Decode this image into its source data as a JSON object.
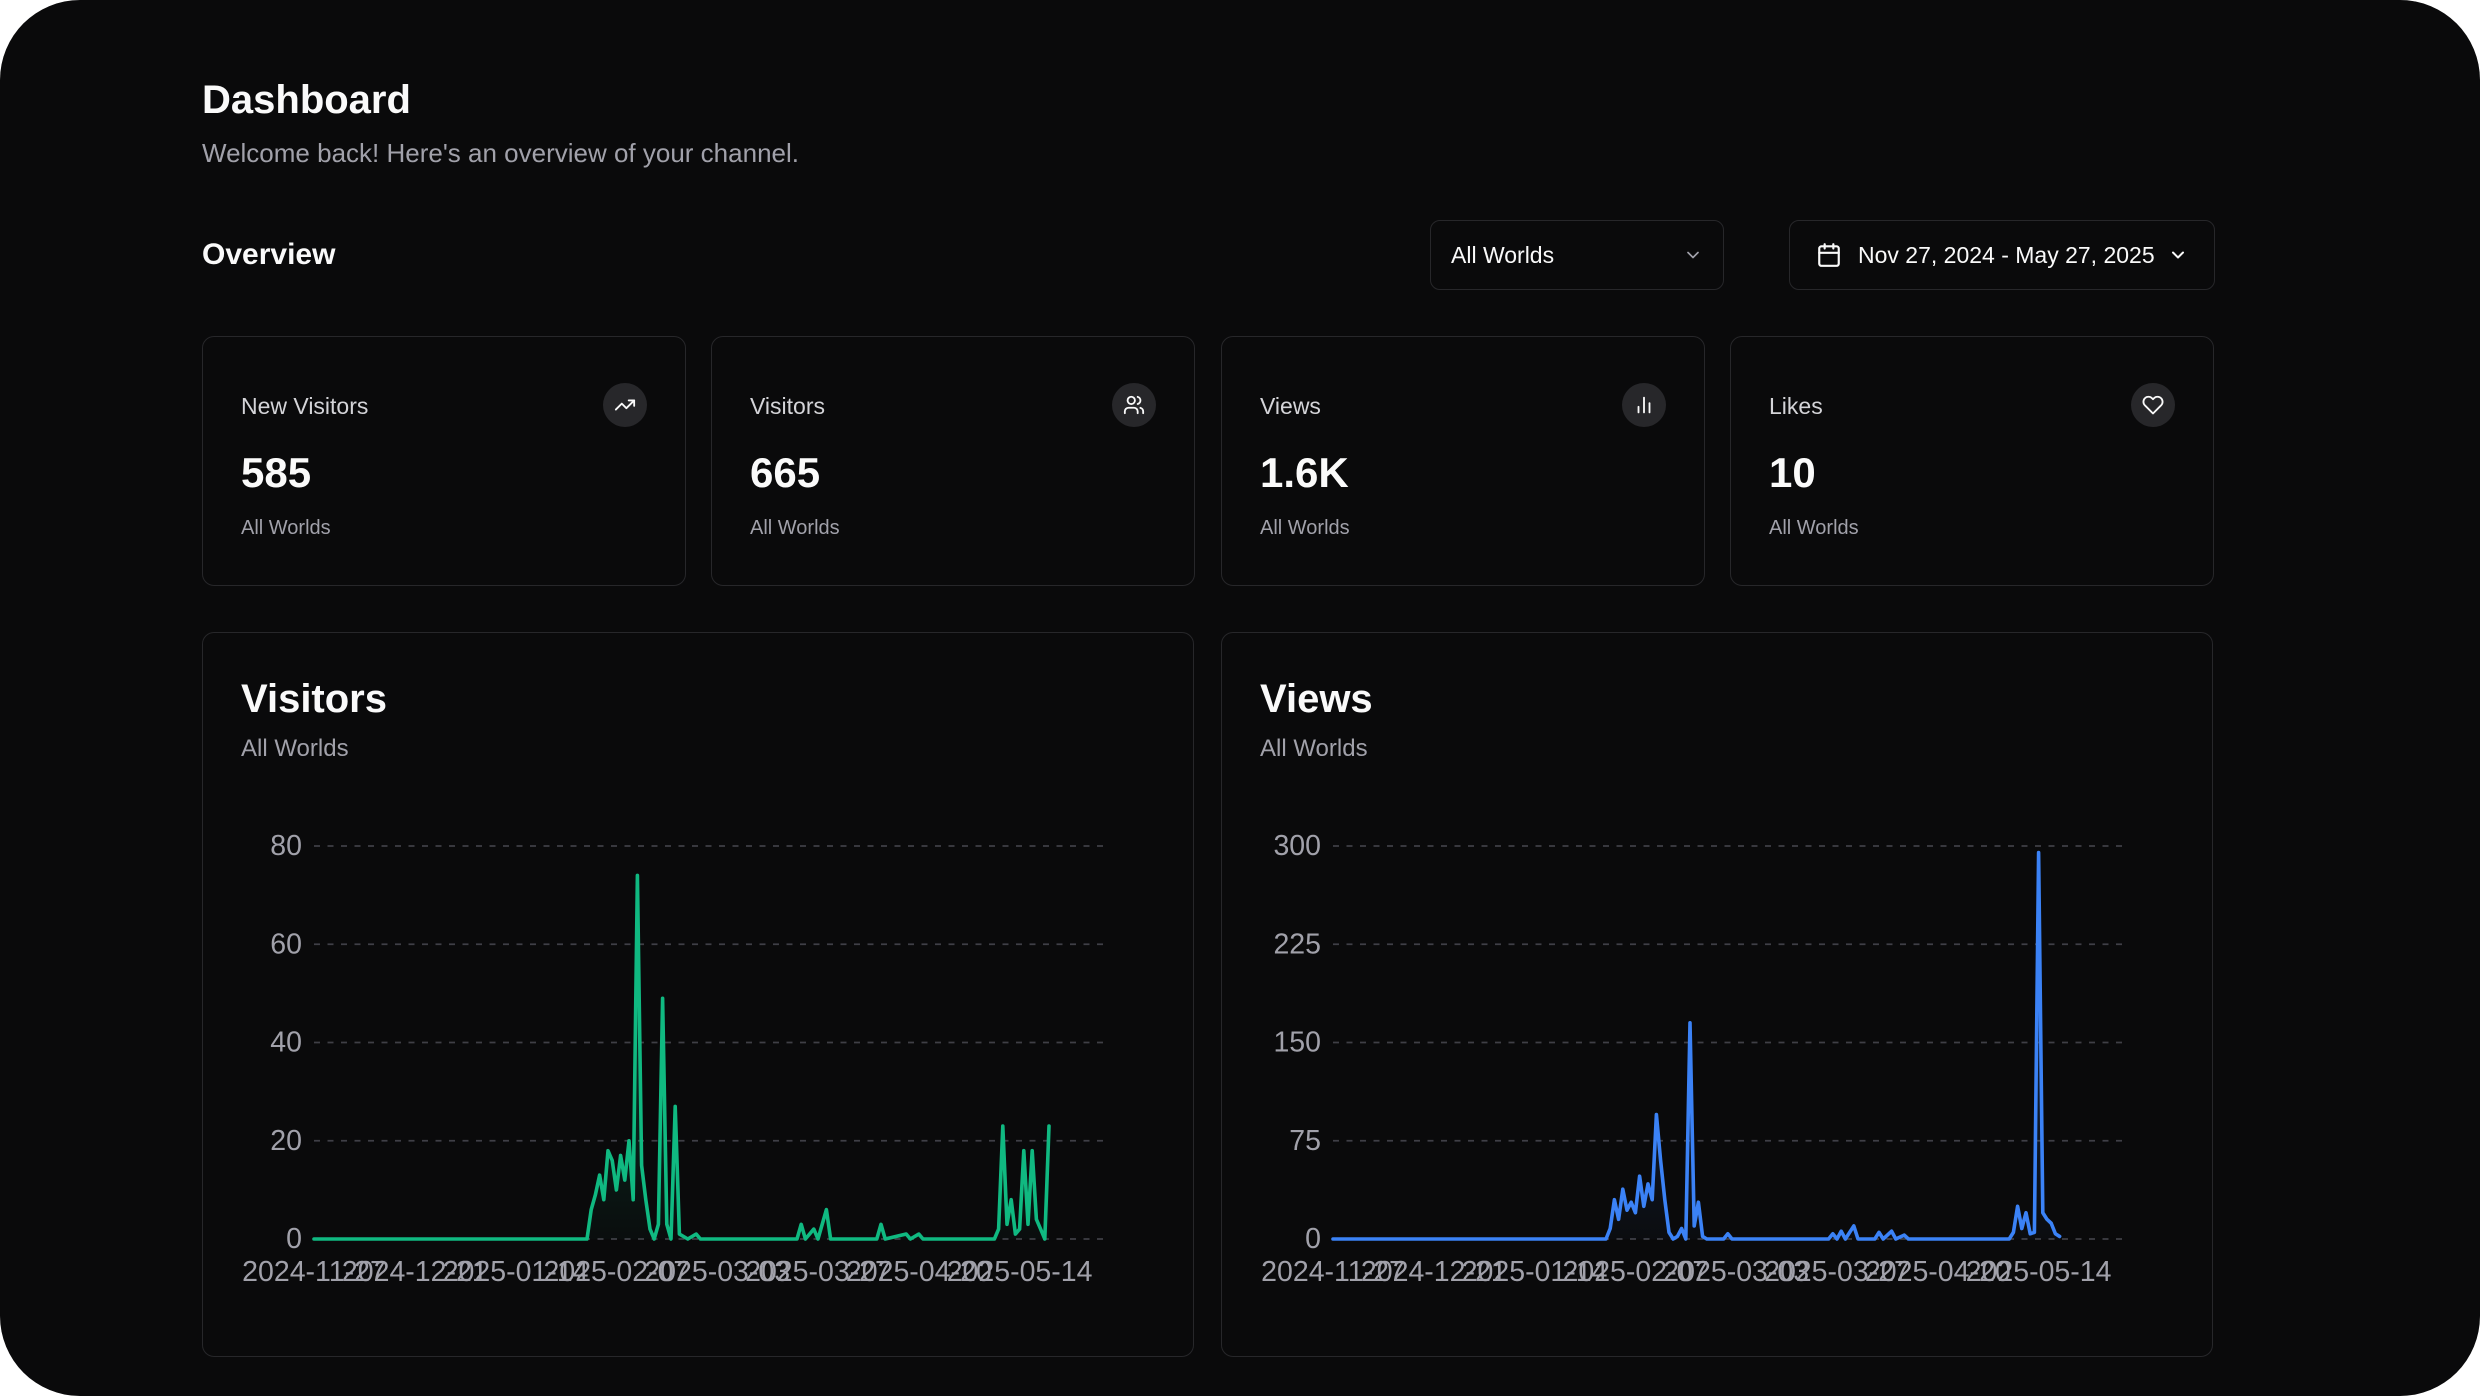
{
  "header": {
    "title": "Dashboard",
    "subtitle": "Welcome back! Here's an overview of your channel."
  },
  "overview": {
    "title": "Overview",
    "world_filter": "All Worlds",
    "date_range": "Nov 27, 2024 - May 27, 2025"
  },
  "stats": [
    {
      "label": "New Visitors",
      "value": "585",
      "scope": "All Worlds",
      "icon": "trending-up-icon"
    },
    {
      "label": "Visitors",
      "value": "665",
      "scope": "All Worlds",
      "icon": "users-icon"
    },
    {
      "label": "Views",
      "value": "1.6K",
      "scope": "All Worlds",
      "icon": "bar-chart-icon"
    },
    {
      "label": "Likes",
      "value": "10",
      "scope": "All Worlds",
      "icon": "heart-icon"
    }
  ],
  "colors": {
    "visitors_line": "#10b981",
    "views_line": "#3b82f6"
  },
  "chart_data": [
    {
      "type": "area",
      "title": "Visitors",
      "subtitle": "All Worlds",
      "x_tick_labels": [
        "2024-11-27",
        "2024-12-21",
        "2025-01-14",
        "2025-02-07",
        "2025-03-03",
        "2025-03-27",
        "2025-04-20",
        "2025-05-14"
      ],
      "y_ticks": [
        0,
        20,
        40,
        60,
        80
      ],
      "ylim": [
        0,
        80
      ],
      "x_start": "2024-11-27",
      "x_end": "2025-05-27",
      "grid": true,
      "series": [
        {
          "name": "Visitors",
          "points": [
            [
              "2024-11-27",
              0
            ],
            [
              "2025-01-31",
              0
            ],
            [
              "2025-02-01",
              6
            ],
            [
              "2025-02-02",
              9
            ],
            [
              "2025-02-03",
              13
            ],
            [
              "2025-02-04",
              8
            ],
            [
              "2025-02-05",
              18
            ],
            [
              "2025-02-06",
              16
            ],
            [
              "2025-02-07",
              10
            ],
            [
              "2025-02-08",
              17
            ],
            [
              "2025-02-09",
              12
            ],
            [
              "2025-02-10",
              20
            ],
            [
              "2025-02-11",
              8
            ],
            [
              "2025-02-12",
              74
            ],
            [
              "2025-02-13",
              15
            ],
            [
              "2025-02-14",
              8
            ],
            [
              "2025-02-15",
              2
            ],
            [
              "2025-02-16",
              0
            ],
            [
              "2025-02-17",
              3
            ],
            [
              "2025-02-18",
              49
            ],
            [
              "2025-02-19",
              3
            ],
            [
              "2025-02-20",
              0
            ],
            [
              "2025-02-21",
              27
            ],
            [
              "2025-02-22",
              1
            ],
            [
              "2025-02-24",
              0
            ],
            [
              "2025-02-26",
              1
            ],
            [
              "2025-02-27",
              0
            ],
            [
              "2025-03-22",
              0
            ],
            [
              "2025-03-23",
              3
            ],
            [
              "2025-03-24",
              0
            ],
            [
              "2025-03-26",
              2
            ],
            [
              "2025-03-27",
              0
            ],
            [
              "2025-03-29",
              6
            ],
            [
              "2025-03-30",
              0
            ],
            [
              "2025-04-10",
              0
            ],
            [
              "2025-04-11",
              3
            ],
            [
              "2025-04-12",
              0
            ],
            [
              "2025-04-17",
              1
            ],
            [
              "2025-04-18",
              0
            ],
            [
              "2025-04-20",
              1
            ],
            [
              "2025-04-21",
              0
            ],
            [
              "2025-05-08",
              0
            ],
            [
              "2025-05-09",
              2
            ],
            [
              "2025-05-10",
              23
            ],
            [
              "2025-05-11",
              3
            ],
            [
              "2025-05-12",
              8
            ],
            [
              "2025-05-13",
              1
            ],
            [
              "2025-05-14",
              2
            ],
            [
              "2025-05-15",
              18
            ],
            [
              "2025-05-16",
              3
            ],
            [
              "2025-05-17",
              18
            ],
            [
              "2025-05-18",
              4
            ],
            [
              "2025-05-19",
              2
            ],
            [
              "2025-05-20",
              0
            ],
            [
              "2025-05-21",
              23
            ]
          ]
        }
      ]
    },
    {
      "type": "line",
      "title": "Views",
      "subtitle": "All Worlds",
      "x_tick_labels": [
        "2024-11-27",
        "2024-12-21",
        "2025-01-14",
        "2025-02-07",
        "2025-03-03",
        "2025-03-27",
        "2025-04-20",
        "2025-05-14"
      ],
      "y_ticks": [
        0,
        75,
        150,
        225,
        300
      ],
      "ylim": [
        0,
        300
      ],
      "x_start": "2024-11-27",
      "x_end": "2025-05-27",
      "grid": true,
      "series": [
        {
          "name": "Views",
          "points": [
            [
              "2024-11-27",
              0
            ],
            [
              "2025-01-31",
              0
            ],
            [
              "2025-02-01",
              8
            ],
            [
              "2025-02-02",
              30
            ],
            [
              "2025-02-03",
              15
            ],
            [
              "2025-02-04",
              38
            ],
            [
              "2025-02-05",
              22
            ],
            [
              "2025-02-06",
              28
            ],
            [
              "2025-02-07",
              20
            ],
            [
              "2025-02-08",
              48
            ],
            [
              "2025-02-09",
              25
            ],
            [
              "2025-02-10",
              42
            ],
            [
              "2025-02-11",
              30
            ],
            [
              "2025-02-12",
              95
            ],
            [
              "2025-02-13",
              60
            ],
            [
              "2025-02-14",
              30
            ],
            [
              "2025-02-15",
              5
            ],
            [
              "2025-02-16",
              0
            ],
            [
              "2025-02-17",
              2
            ],
            [
              "2025-02-18",
              8
            ],
            [
              "2025-02-19",
              0
            ],
            [
              "2025-02-20",
              165
            ],
            [
              "2025-02-21",
              10
            ],
            [
              "2025-02-22",
              28
            ],
            [
              "2025-02-23",
              2
            ],
            [
              "2025-02-24",
              0
            ],
            [
              "2025-02-28",
              0
            ],
            [
              "2025-03-01",
              4
            ],
            [
              "2025-03-02",
              0
            ],
            [
              "2025-03-25",
              0
            ],
            [
              "2025-03-26",
              4
            ],
            [
              "2025-03-27",
              0
            ],
            [
              "2025-03-28",
              6
            ],
            [
              "2025-03-29",
              0
            ],
            [
              "2025-03-31",
              10
            ],
            [
              "2025-04-01",
              0
            ],
            [
              "2025-04-05",
              0
            ],
            [
              "2025-04-06",
              5
            ],
            [
              "2025-04-07",
              0
            ],
            [
              "2025-04-09",
              6
            ],
            [
              "2025-04-10",
              0
            ],
            [
              "2025-04-12",
              3
            ],
            [
              "2025-04-13",
              0
            ],
            [
              "2025-05-07",
              0
            ],
            [
              "2025-05-08",
              5
            ],
            [
              "2025-05-09",
              25
            ],
            [
              "2025-05-10",
              8
            ],
            [
              "2025-05-11",
              20
            ],
            [
              "2025-05-12",
              4
            ],
            [
              "2025-05-13",
              5
            ],
            [
              "2025-05-14",
              295
            ],
            [
              "2025-05-15",
              20
            ],
            [
              "2025-05-16",
              15
            ],
            [
              "2025-05-17",
              12
            ],
            [
              "2025-05-18",
              4
            ],
            [
              "2025-05-19",
              2
            ]
          ]
        }
      ]
    }
  ]
}
